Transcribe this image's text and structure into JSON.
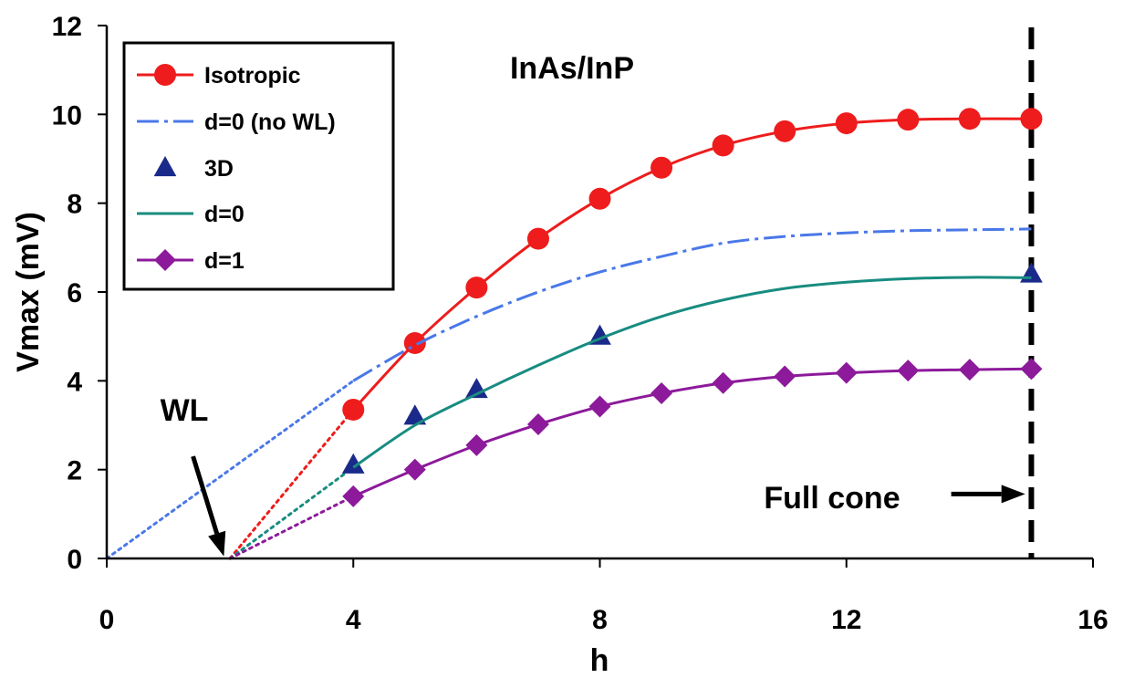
{
  "chart_data": {
    "type": "line",
    "title": "InAs/InP",
    "xlabel": "h",
    "ylabel": "Vmax (mV)",
    "xlim": [
      0,
      16
    ],
    "ylim": [
      0,
      12
    ],
    "x_ticks": [
      "0",
      "4",
      "8",
      "12",
      "16"
    ],
    "y_ticks": [
      "0",
      "2",
      "4",
      "6",
      "8",
      "10",
      "12"
    ],
    "legend_position": "top-left",
    "grid": false,
    "series": [
      {
        "name": "Isotropic",
        "color": "#ee1c1c",
        "style": "solid-with-circles",
        "x": [
          4,
          5,
          6,
          7,
          8,
          9,
          10,
          11,
          12,
          13,
          14,
          15
        ],
        "y": [
          3.35,
          4.85,
          6.1,
          7.2,
          8.1,
          8.8,
          9.3,
          9.62,
          9.8,
          9.88,
          9.9,
          9.9
        ]
      },
      {
        "name": "d=0 (no WL)",
        "color": "#4a78e8",
        "style": "dash-dot",
        "x": [
          4,
          5,
          6,
          7,
          8,
          9,
          10,
          11,
          12,
          13,
          14,
          15
        ],
        "y": [
          4.0,
          4.8,
          5.45,
          6.0,
          6.45,
          6.8,
          7.1,
          7.25,
          7.33,
          7.38,
          7.4,
          7.42
        ]
      },
      {
        "name": "3D",
        "color": "#1a2a8a",
        "style": "triangles",
        "x": [
          4,
          5,
          6,
          8,
          15
        ],
        "y": [
          2.1,
          3.2,
          3.8,
          5.0,
          6.4
        ]
      },
      {
        "name": "d=0",
        "color": "#188c80",
        "style": "solid",
        "x": [
          4,
          5,
          6,
          7,
          8,
          9,
          10,
          11,
          12,
          13,
          14,
          15
        ],
        "y": [
          2.05,
          3.0,
          3.7,
          4.35,
          4.95,
          5.45,
          5.82,
          6.08,
          6.22,
          6.3,
          6.33,
          6.32
        ]
      },
      {
        "name": "d=1",
        "color": "#8c1a9a",
        "style": "solid-with-diamonds",
        "x": [
          4,
          5,
          6,
          7,
          8,
          9,
          10,
          11,
          12,
          13,
          14,
          15
        ],
        "y": [
          1.4,
          2.0,
          2.55,
          3.02,
          3.42,
          3.72,
          3.95,
          4.1,
          4.18,
          4.23,
          4.25,
          4.27
        ]
      }
    ],
    "extrapolations": [
      {
        "color": "#4a78e8",
        "x": [
          0,
          4
        ],
        "y": [
          0,
          4.0
        ]
      },
      {
        "color": "#ee1c1c",
        "x": [
          2,
          4
        ],
        "y": [
          0,
          3.35
        ]
      },
      {
        "color": "#188c80",
        "x": [
          2,
          4
        ],
        "y": [
          0,
          2.05
        ]
      },
      {
        "color": "#8c1a9a",
        "x": [
          2,
          4
        ],
        "y": [
          0,
          1.4
        ]
      }
    ],
    "annotations": [
      {
        "text": "WL",
        "x": 1.8,
        "y": 3.1,
        "arrow_from": [
          1.4,
          2.3
        ],
        "arrow_to": [
          1.9,
          0.05
        ]
      },
      {
        "text": "Full cone",
        "x": 8.5,
        "y": 1.35,
        "arrow_from": [
          13.7,
          1.45
        ],
        "arrow_to": [
          14.9,
          1.45
        ]
      }
    ],
    "reference_line": {
      "x": 15,
      "style": "dashed",
      "color": "#000000"
    }
  }
}
